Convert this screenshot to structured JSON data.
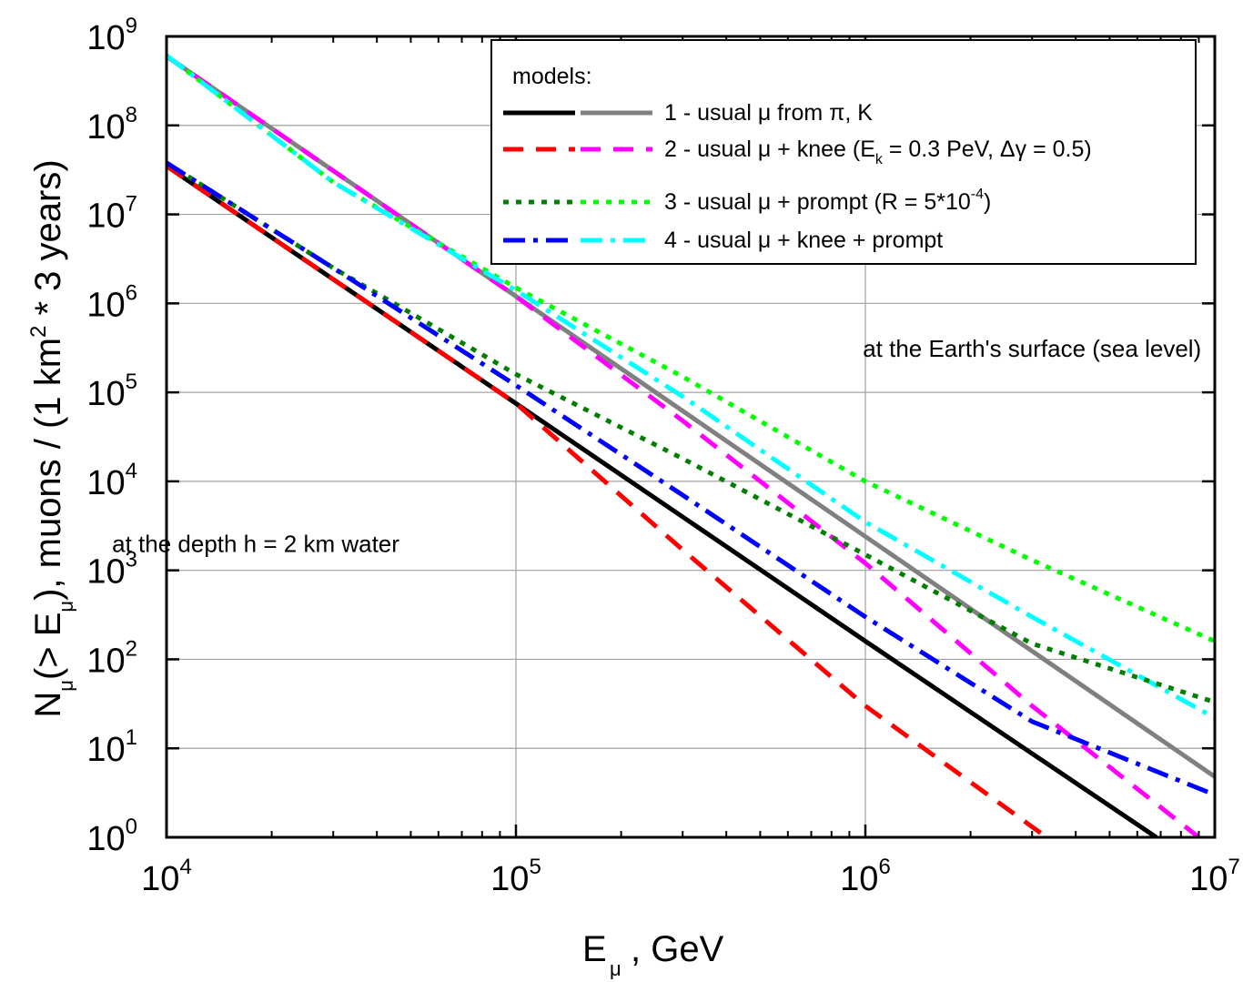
{
  "chart_data": {
    "type": "line",
    "x_scale": "log",
    "y_scale": "log",
    "xlim": [
      10000,
      10000000
    ],
    "ylim": [
      1,
      1000000000
    ],
    "grid": true,
    "legend_position": "top-right",
    "xlabel": {
      "main": "E",
      "sub": "μ",
      "rest": ", GeV"
    },
    "ylabel": {
      "p1": "N",
      "s1": "μ",
      "p2": "(> E",
      "s2": "μ",
      "p3": "), muons / (1 km",
      "sup": "2",
      "p4": " * 3 years)"
    },
    "x_ticks": [
      {
        "base": "10",
        "exp": "4",
        "value": 10000
      },
      {
        "base": "10",
        "exp": "5",
        "value": 100000
      },
      {
        "base": "10",
        "exp": "6",
        "value": 1000000
      },
      {
        "base": "10",
        "exp": "7",
        "value": 10000000
      }
    ],
    "y_ticks": [
      {
        "base": "10",
        "exp": "0",
        "value": 1
      },
      {
        "base": "10",
        "exp": "1",
        "value": 10
      },
      {
        "base": "10",
        "exp": "2",
        "value": 100
      },
      {
        "base": "10",
        "exp": "3",
        "value": 1000
      },
      {
        "base": "10",
        "exp": "4",
        "value": 10000
      },
      {
        "base": "10",
        "exp": "5",
        "value": 100000
      },
      {
        "base": "10",
        "exp": "6",
        "value": 1000000
      },
      {
        "base": "10",
        "exp": "7",
        "value": 10000000
      },
      {
        "base": "10",
        "exp": "8",
        "value": 100000000
      },
      {
        "base": "10",
        "exp": "9",
        "value": 1000000000
      }
    ],
    "legend": {
      "title": "models:",
      "entries": [
        {
          "label": "1 - usual μ from π, K",
          "colors": [
            "#000000",
            "#808080"
          ],
          "dash": "solid"
        },
        {
          "label": "2 - usual μ + knee (E",
          "sub": "k",
          "label_tail": " = 0.3 PeV, Δγ = 0.5)",
          "colors": [
            "#ff0000",
            "#ff00ff"
          ],
          "dash": "dash"
        },
        {
          "label": "3 - usual μ + prompt (R = 5*10",
          "sup": "-4",
          "label_tail": ")",
          "colors": [
            "#007f00",
            "#00ff00"
          ],
          "dash": "dot"
        },
        {
          "label": "4 - usual μ + knee + prompt",
          "colors": [
            "#0000ff",
            "#00ffff"
          ],
          "dash": "dashdot"
        }
      ]
    },
    "annotations": [
      {
        "text": "at the Earth's surface (sea level)",
        "x": 3000000,
        "y": 250000
      },
      {
        "text": "at the depth h = 2 km water",
        "x": 18000,
        "y": 1600
      }
    ],
    "series": [
      {
        "group": "surface",
        "model": "1 - usual μ from π, K",
        "color": "#808080",
        "dash": "solid",
        "x": [
          10000,
          100000,
          1000000,
          10000000
        ],
        "y": [
          600000000,
          1200000,
          2400,
          4.8
        ]
      },
      {
        "group": "surface",
        "model": "2 - usual μ + knee",
        "color": "#ff00ff",
        "dash": "dash",
        "x": [
          10000,
          100000,
          300000,
          1000000,
          3000000,
          9000000
        ],
        "y": [
          600000000,
          1200000,
          48000,
          1200,
          30,
          1
        ]
      },
      {
        "group": "surface",
        "model": "3 - usual μ + prompt",
        "color": "#00ff00",
        "dash": "dot",
        "x": [
          10000,
          30000,
          100000,
          300000,
          1000000,
          3000000,
          10000000
        ],
        "y": [
          610000000,
          23000000,
          1500000,
          150000,
          10000,
          1300,
          160
        ]
      },
      {
        "group": "surface",
        "model": "4 - usual μ + knee + prompt",
        "color": "#00ffff",
        "dash": "dashdot",
        "x": [
          10000,
          30000,
          100000,
          300000,
          1000000,
          3000000,
          10000000
        ],
        "y": [
          610000000,
          23000000,
          1400000,
          90000,
          3500,
          300,
          22
        ]
      },
      {
        "group": "depth",
        "model": "1 - usual μ from π, K",
        "color": "#000000",
        "dash": "solid",
        "x": [
          10000,
          100000,
          1000000,
          6800000
        ],
        "y": [
          35000000,
          75000,
          160,
          1
        ]
      },
      {
        "group": "depth",
        "model": "2 - usual μ + knee",
        "color": "#ff0000",
        "dash": "dash",
        "x": [
          10000,
          100000,
          300000,
          1000000,
          3300000
        ],
        "y": [
          35000000,
          75000,
          1700,
          30,
          1
        ]
      },
      {
        "group": "depth",
        "model": "3 - usual μ + prompt",
        "color": "#007f00",
        "dash": "dot",
        "x": [
          10000,
          30000,
          100000,
          300000,
          1000000,
          3000000,
          10000000
        ],
        "y": [
          38000000,
          2500000,
          160000,
          18000,
          1500,
          150,
          33
        ]
      },
      {
        "group": "depth",
        "model": "4 - usual μ + knee + prompt",
        "color": "#0000ff",
        "dash": "dashdot",
        "x": [
          10000,
          30000,
          100000,
          300000,
          1000000,
          3000000,
          10000000
        ],
        "y": [
          38000000,
          2500000,
          120000,
          7000,
          300,
          20,
          3
        ]
      }
    ]
  }
}
